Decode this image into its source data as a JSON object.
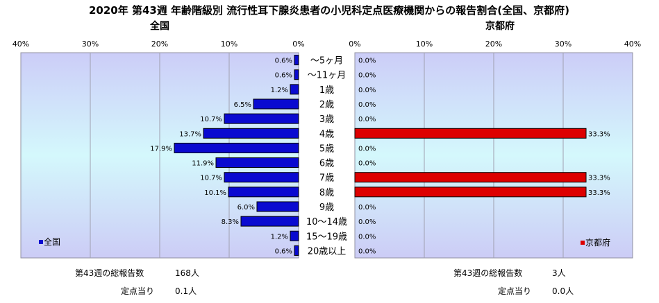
{
  "title": "2020年 第43週 年齢階級別 流行性耳下腺炎患者の小児科定点医療機関からの報告割合(全国、京都府)",
  "chart_data": [
    {
      "type": "bar",
      "orientation": "horizontal",
      "direction": "reversed",
      "subtitle": "全国",
      "categories": [
        "～5ヶ月",
        "～11ヶ月",
        "1歳",
        "2歳",
        "3歳",
        "4歳",
        "5歳",
        "6歳",
        "7歳",
        "8歳",
        "9歳",
        "10～14歳",
        "15～19歳",
        "20歳以上"
      ],
      "series": [
        {
          "name": "全国",
          "values": [
            0.6,
            0.6,
            1.2,
            6.5,
            10.7,
            13.7,
            17.9,
            11.9,
            10.7,
            10.1,
            6.0,
            8.3,
            1.2,
            0.6
          ]
        }
      ],
      "data_labels": [
        "0.6%",
        "0.6%",
        "1.2%",
        "6.5%",
        "10.7%",
        "13.7%",
        "17.9%",
        "11.9%",
        "10.7%",
        "10.1%",
        "6.0%",
        "8.3%",
        "1.2%",
        "0.6%"
      ],
      "xlim": [
        0,
        40
      ],
      "ticks": [
        "40%",
        "30%",
        "20%",
        "10%",
        "0%"
      ],
      "grid": true,
      "legend_position": "bottom-left",
      "color": "#0a0ad0"
    },
    {
      "type": "bar",
      "orientation": "horizontal",
      "subtitle": "京都府",
      "categories": [
        "～5ヶ月",
        "～11ヶ月",
        "1歳",
        "2歳",
        "3歳",
        "4歳",
        "5歳",
        "6歳",
        "7歳",
        "8歳",
        "9歳",
        "10～14歳",
        "15～19歳",
        "20歳以上"
      ],
      "series": [
        {
          "name": "京都府",
          "values": [
            0.0,
            0.0,
            0.0,
            0.0,
            0.0,
            33.3,
            0.0,
            0.0,
            33.3,
            33.3,
            0.0,
            0.0,
            0.0,
            0.0
          ]
        }
      ],
      "data_labels": [
        "0.0%",
        "0.0%",
        "0.0%",
        "0.0%",
        "0.0%",
        "33.3%",
        "0.0%",
        "0.0%",
        "33.3%",
        "33.3%",
        "0.0%",
        "0.0%",
        "0.0%",
        "0.0%"
      ],
      "xlim": [
        0,
        40
      ],
      "ticks": [
        "0%",
        "10%",
        "20%",
        "30%",
        "40%"
      ],
      "grid": true,
      "legend_position": "bottom-right",
      "color": "#dd0000"
    }
  ],
  "footer": {
    "left": {
      "total_label": "第43週の総報告数",
      "total_value": "168人",
      "per_label": "定点当り",
      "per_value": "0.1人"
    },
    "right": {
      "total_label": "第43週の総報告数",
      "total_value": "3人",
      "per_label": "定点当り",
      "per_value": "0.0人"
    }
  },
  "colors": {
    "plot_gradient_top": "#cccdf8",
    "plot_gradient_mid": "#d4f8fc",
    "plot_gradient_bottom": "#ccccf6",
    "grid": "#a0a0b0"
  }
}
